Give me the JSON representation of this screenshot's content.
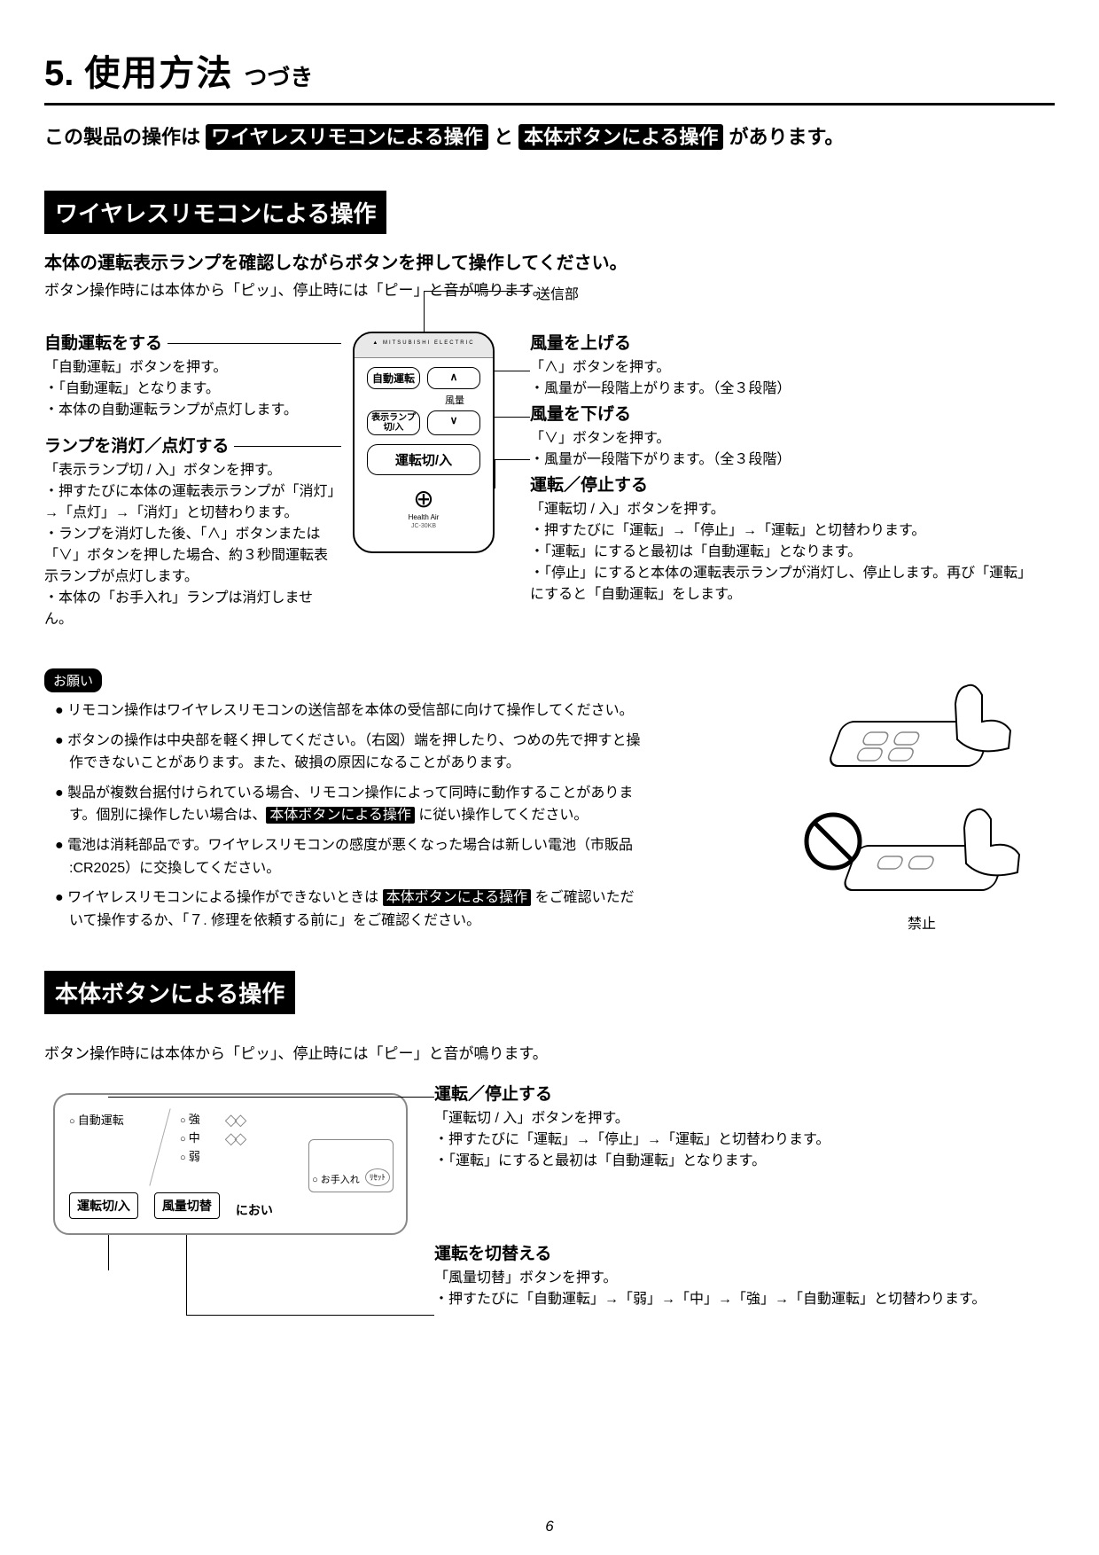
{
  "title": {
    "num": "5.",
    "main": "使用方法",
    "cont": "つづき"
  },
  "intro_pre": "この製品の操作は",
  "intro_inv1": "ワイヤレスリモコンによる操作",
  "intro_mid": " と ",
  "intro_inv2": "本体ボタンによる操作",
  "intro_post": " があります。",
  "sec1": {
    "heading": "ワイヤレスリモコンによる操作",
    "lead1": "本体の運転表示ランプを確認しながらボタンを押して操作してください。",
    "lead2": "ボタン操作時には本体から「ピッ」、停止時には「ピー」と音が鳴ります。",
    "send_label": "送信部",
    "left_blocks": [
      {
        "title": "自動運転をする",
        "body": "「自動運転」ボタンを押す。\n・「自動運転」となります。\n・本体の自動運転ランプが点灯します。"
      },
      {
        "title": "ランプを消灯／点灯する",
        "body": "「表示ランプ切 / 入」ボタンを押す。\n・押すたびに本体の運転表示ランプが「消灯」→「点灯」→「消灯」と切替わります。\n・ランプを消灯した後、「∧」ボタンまたは「∨」ボタンを押した場合、約３秒間運転表示ランプが点灯します。\n・本体の「お手入れ」ランプは消灯しません。"
      }
    ],
    "right_blocks": [
      {
        "title": "風量を上げる",
        "body": "「∧」ボタンを押す。\n・風量が一段階上がります。（全３段階）"
      },
      {
        "title": "風量を下げる",
        "body": "「∨」ボタンを押す。\n・風量が一段階下がります。（全３段階）"
      },
      {
        "title": "運転／停止する",
        "body": "「運転切 / 入」ボタンを押す。\n・押すたびに「運転」→「停止」→「運転」と切替わります。\n・「運転」にすると最初は「自動運転」となります。\n・「停止」にすると本体の運転表示ランプが消灯し、停止します。再び「運転」にすると「自動運転」をします。"
      }
    ],
    "remote": {
      "brand": "▲ MITSUBISHI ELECTRIC",
      "btn_auto": "自動運転",
      "btn_up": "∧",
      "air_label": "風量",
      "btn_lamp": "表示ランプ\n切/入",
      "btn_down": "∨",
      "btn_power": "運転切/入",
      "logo": "⊕",
      "sub": "Health Air",
      "model": "JC-30KB"
    }
  },
  "notes": {
    "badge": "お願い",
    "items": [
      "リモコン操作はワイヤレスリモコンの送信部を本体の受信部に向けて操作してください。",
      "ボタンの操作は中央部を軽く押してください。（右図）端を押したり、つめの先で押すと操作できないことがあります。また、破損の原因になることがあります。",
      "製品が複数台据付けられている場合、リモコン操作によって同時に動作することがあります。個別に操作したい場合は、[INV3] に従い操作してください。",
      "電池は消耗部品です。ワイヤレスリモコンの感度が悪くなった場合は新しい電池（市販品 :CR2025）に交換してください。",
      "ワイヤレスリモコンによる操作ができないときは [INV3] をご確認いただいて操作するか、「７. 修理を依頼する前に」をご確認ください。"
    ],
    "inv_ref": "本体ボタンによる操作",
    "prohibit_label": "禁止"
  },
  "sec2": {
    "heading": "本体ボタンによる操作",
    "lead": "ボタン操作時には本体から「ピッ」、停止時には「ピー」と音が鳴ります。",
    "panel": {
      "lamp_auto": "自動運転",
      "lamp_hi": "強",
      "lamp_mid": "中",
      "lamp_lo": "弱",
      "btn_power": "運転切/入",
      "btn_fan": "風量切替",
      "odor": "におい",
      "care": "お手入れ",
      "reset": "ﾘｾｯﾄ"
    },
    "callouts": [
      {
        "title": "運転／停止する",
        "body": "「運転切 / 入」ボタンを押す。\n・押すたびに「運転」→「停止」→「運転」と切替わります。\n・「運転」にすると最初は「自動運転」となります。"
      },
      {
        "title": "運転を切替える",
        "body": "「風量切替」ボタンを押す。\n・押すたびに「自動運転」→「弱」→「中」→「強」→「自動運転」と切替わります。"
      }
    ]
  },
  "page_number": "6"
}
